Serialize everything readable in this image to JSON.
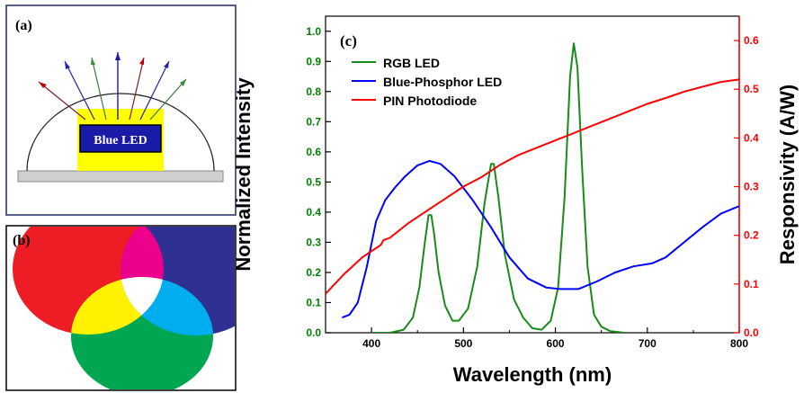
{
  "panels": {
    "a": {
      "label": "(a)",
      "led_label": "Blue LED",
      "colors": {
        "frame": "#1f2a6b",
        "chip": "#1a1aa8",
        "phosphor": "#ffff00",
        "base": "#cccccc"
      }
    },
    "b": {
      "label": "(b)",
      "colors": {
        "red": "#ee1c24",
        "blue": "#2e3192",
        "green": "#00a651",
        "magenta": "#ec008c",
        "yellow": "#fff200",
        "cyan": "#00aeef",
        "white": "#ffffff"
      }
    },
    "c": {
      "label": "(c)"
    }
  },
  "chart_data": {
    "type": "line",
    "xlabel": "Wavelength (nm)",
    "ylabel_left": "Normalized Intensity",
    "ylabel_right": "Responsivity (A/W)",
    "xlim": [
      350,
      800
    ],
    "ylim_left": [
      0,
      1.05
    ],
    "ylim_right": [
      0,
      0.65
    ],
    "x_ticks": [
      400,
      500,
      600,
      700,
      800
    ],
    "y_ticks_left": [
      "0.0",
      "0.1",
      "0.2",
      "0.3",
      "0.4",
      "0.5",
      "0.6",
      "0.7",
      "0.8",
      "0.9",
      "1.0"
    ],
    "y_ticks_right": [
      "0.0",
      "0.1",
      "0.2",
      "0.3",
      "0.4",
      "0.5",
      "0.6"
    ],
    "legend_position": "top-left",
    "grid": false,
    "colors": {
      "left_axis": "#008000",
      "right_axis": "#ff0000"
    },
    "series": [
      {
        "name": "RGB LED",
        "axis": "left",
        "color": "#1a8a1a",
        "points": [
          [
            400,
            0
          ],
          [
            420,
            0
          ],
          [
            435,
            0.01
          ],
          [
            445,
            0.05
          ],
          [
            452,
            0.15
          ],
          [
            458,
            0.3
          ],
          [
            462,
            0.39
          ],
          [
            465,
            0.39
          ],
          [
            468,
            0.33
          ],
          [
            473,
            0.2
          ],
          [
            480,
            0.09
          ],
          [
            488,
            0.04
          ],
          [
            495,
            0.04
          ],
          [
            505,
            0.08
          ],
          [
            515,
            0.22
          ],
          [
            523,
            0.43
          ],
          [
            530,
            0.56
          ],
          [
            533,
            0.56
          ],
          [
            538,
            0.45
          ],
          [
            545,
            0.26
          ],
          [
            555,
            0.11
          ],
          [
            565,
            0.05
          ],
          [
            575,
            0.015
          ],
          [
            585,
            0.01
          ],
          [
            595,
            0.04
          ],
          [
            603,
            0.15
          ],
          [
            610,
            0.45
          ],
          [
            616,
            0.85
          ],
          [
            620,
            0.96
          ],
          [
            624,
            0.88
          ],
          [
            629,
            0.55
          ],
          [
            635,
            0.22
          ],
          [
            642,
            0.06
          ],
          [
            650,
            0.02
          ],
          [
            660,
            0.005
          ],
          [
            675,
            0
          ]
        ]
      },
      {
        "name": "Blue-Phosphor LED",
        "axis": "left",
        "color": "#0000ff",
        "points": [
          [
            368,
            0.05
          ],
          [
            376,
            0.06
          ],
          [
            385,
            0.1
          ],
          [
            395,
            0.22
          ],
          [
            405,
            0.37
          ],
          [
            415,
            0.44
          ],
          [
            425,
            0.48
          ],
          [
            437,
            0.52
          ],
          [
            450,
            0.555
          ],
          [
            463,
            0.57
          ],
          [
            475,
            0.56
          ],
          [
            490,
            0.52
          ],
          [
            510,
            0.44
          ],
          [
            530,
            0.35
          ],
          [
            550,
            0.25
          ],
          [
            570,
            0.18
          ],
          [
            590,
            0.15
          ],
          [
            605,
            0.145
          ],
          [
            625,
            0.145
          ],
          [
            645,
            0.17
          ],
          [
            665,
            0.2
          ],
          [
            685,
            0.22
          ],
          [
            705,
            0.23
          ],
          [
            720,
            0.25
          ],
          [
            740,
            0.3
          ],
          [
            760,
            0.35
          ],
          [
            780,
            0.395
          ],
          [
            800,
            0.42
          ]
        ]
      },
      {
        "name": "PIN Photodiode",
        "axis": "right",
        "color": "#ff0000",
        "points": [
          [
            350,
            0.08
          ],
          [
            370,
            0.12
          ],
          [
            390,
            0.155
          ],
          [
            410,
            0.18
          ],
          [
            413,
            0.19
          ],
          [
            420,
            0.195
          ],
          [
            440,
            0.225
          ],
          [
            460,
            0.25
          ],
          [
            480,
            0.275
          ],
          [
            500,
            0.3
          ],
          [
            520,
            0.32
          ],
          [
            540,
            0.345
          ],
          [
            560,
            0.365
          ],
          [
            580,
            0.38
          ],
          [
            600,
            0.395
          ],
          [
            620,
            0.41
          ],
          [
            640,
            0.425
          ],
          [
            660,
            0.44
          ],
          [
            680,
            0.455
          ],
          [
            700,
            0.47
          ],
          [
            720,
            0.482
          ],
          [
            740,
            0.495
          ],
          [
            760,
            0.505
          ],
          [
            780,
            0.515
          ],
          [
            800,
            0.52
          ]
        ]
      }
    ]
  }
}
